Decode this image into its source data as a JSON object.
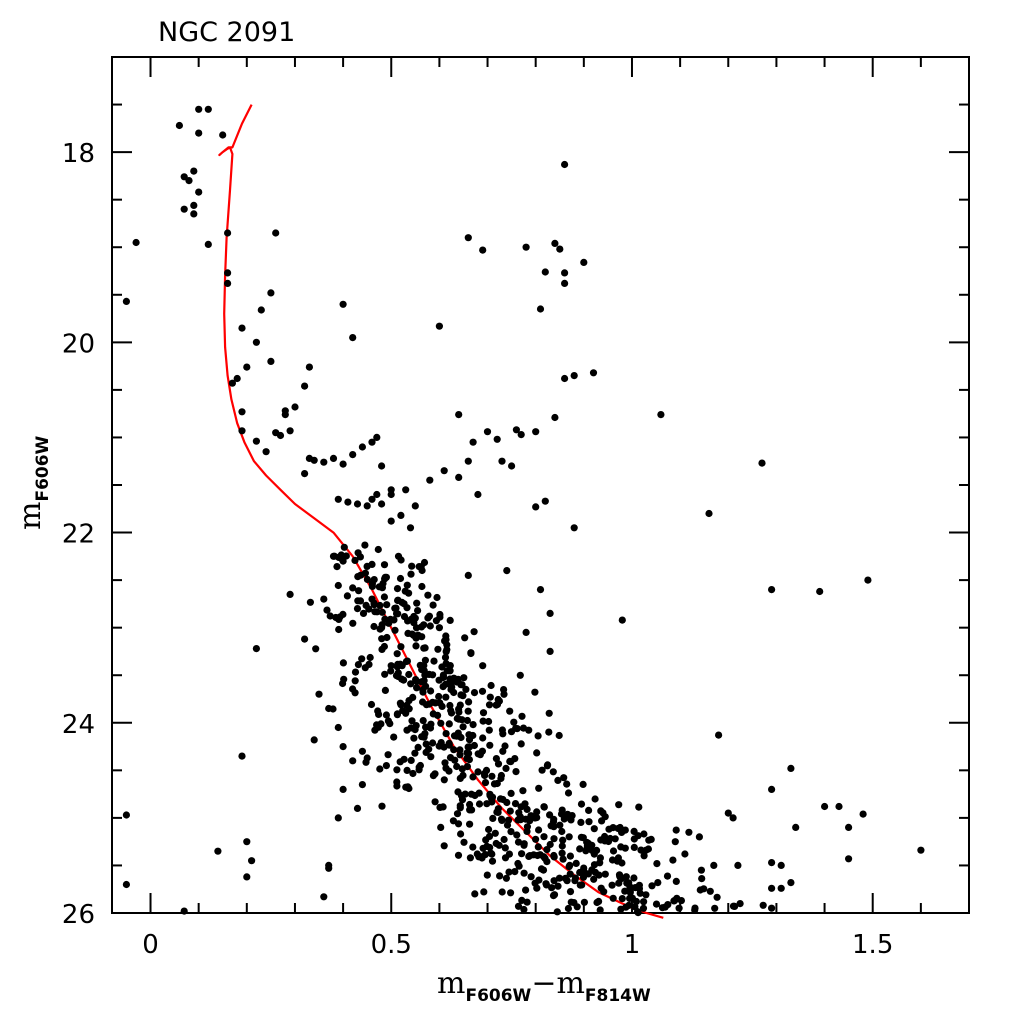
{
  "chart_data": {
    "type": "scatter",
    "title": "NGC 2091",
    "xlabel": {
      "main": "m",
      "sub1": "F606W",
      "minus": "−",
      "main2": "m",
      "sub2": "F814W"
    },
    "ylabel": {
      "main": "m",
      "sub": "F606W"
    },
    "xlim": [
      -0.08,
      1.7
    ],
    "ylim": [
      26,
      17.0
    ],
    "y_inverted": true,
    "grid": false,
    "x_ticks": [
      0,
      0.5,
      1,
      1.5
    ],
    "x_tick_labels": [
      "0",
      "0.5",
      "1",
      "1.5"
    ],
    "y_ticks": [
      18,
      20,
      22,
      24,
      26
    ],
    "y_tick_labels": [
      "18",
      "20",
      "22",
      "24",
      "26"
    ],
    "colors": {
      "points": "#000000",
      "isochrone": "#ff0000"
    },
    "isochrone": {
      "x": [
        0.21,
        0.19,
        0.17,
        0.168,
        0.162,
        0.15,
        0.143,
        0.15,
        0.158,
        0.165,
        0.17,
        0.165,
        0.158,
        0.155,
        0.153,
        0.155,
        0.16,
        0.168,
        0.18,
        0.195,
        0.215,
        0.24,
        0.27,
        0.3,
        0.34,
        0.38,
        0.42,
        0.46,
        0.5,
        0.54,
        0.58,
        0.63,
        0.68,
        0.73,
        0.78,
        0.83,
        0.88,
        0.93,
        0.98,
        1.03,
        1.065
      ],
      "y": [
        17.5,
        17.7,
        17.95,
        17.95,
        17.95,
        18.0,
        18.03,
        18.0,
        17.97,
        17.95,
        18.02,
        18.4,
        18.9,
        19.3,
        19.7,
        20.05,
        20.35,
        20.6,
        20.85,
        21.05,
        21.25,
        21.4,
        21.55,
        21.7,
        21.85,
        22.0,
        22.25,
        22.6,
        23.0,
        23.4,
        23.8,
        24.25,
        24.6,
        24.9,
        25.15,
        25.4,
        25.6,
        25.78,
        25.9,
        26.0,
        26.05
      ]
    },
    "points_x": [
      0.1,
      0.12,
      0.06,
      0.1,
      0.15,
      0.07,
      0.09,
      0.08,
      0.1,
      0.09,
      0.07,
      0.09,
      0.12,
      0.16,
      -0.03,
      0.16,
      0.16,
      -0.05,
      0.26,
      0.25,
      0.23,
      0.19,
      0.2,
      0.18,
      0.17,
      0.22,
      0.25,
      0.28,
      0.32,
      0.3,
      0.28,
      0.29,
      0.19,
      0.19,
      0.26,
      0.27,
      0.24,
      0.22,
      0.4,
      0.42,
      0.33,
      0.66,
      0.6,
      0.69,
      0.78,
      0.82,
      0.84,
      0.85,
      0.86,
      0.86,
      0.81,
      0.86,
      0.9,
      0.8,
      0.86,
      0.76,
      0.77,
      0.84,
      0.88,
      0.92,
      0.72,
      0.64,
      0.7,
      1.06,
      0.82,
      0.8,
      0.88,
      1.16,
      1.27,
      1.29,
      1.39,
      1.49,
      0.98,
      1.18,
      1.33,
      1.29,
      1.4,
      1.43,
      1.48,
      1.45,
      1.34,
      1.45,
      1.6,
      1.33,
      1.31,
      1.29,
      1.29,
      1.29,
      1.31,
      1.2,
      1.21,
      1.22,
      1.09,
      1.11,
      1.14,
      1.17,
      0.22,
      0.29,
      0.32,
      0.35,
      0.34,
      0.4,
      0.44,
      0.45,
      0.49,
      0.4,
      0.43,
      0.39,
      0.37,
      0.37,
      0.36,
      0.19,
      0.2,
      0.2,
      0.21,
      0.14,
      -0.05,
      -0.05,
      0.07,
      0.46,
      0.5,
      0.48,
      0.32,
      0.33,
      0.34,
      0.36,
      0.38,
      0.4,
      0.42,
      0.44,
      0.46,
      0.47,
      0.48,
      0.5,
      0.53,
      0.55,
      0.58,
      0.61,
      0.64,
      0.66,
      0.67,
      0.68,
      0.73,
      0.75,
      0.39,
      0.41,
      0.43,
      0.45,
      0.5,
      0.52,
      0.54,
      0.47,
      0.38,
      0.4,
      0.36,
      0.43,
      0.46,
      0.48,
      0.5,
      0.52,
      0.53,
      0.55,
      0.57,
      0.6,
      0.66,
      0.69,
      0.74,
      0.78,
      0.81,
      0.83,
      0.83,
      0.37,
      0.39,
      0.42,
      0.44
    ],
    "points_y": [
      17.55,
      17.55,
      17.72,
      17.8,
      17.82,
      18.26,
      18.2,
      18.3,
      18.42,
      18.56,
      18.6,
      18.65,
      18.97,
      18.85,
      18.95,
      19.27,
      19.38,
      19.57,
      18.85,
      19.48,
      19.66,
      19.85,
      20.26,
      20.38,
      20.43,
      20.0,
      20.2,
      20.72,
      20.46,
      20.68,
      20.76,
      20.93,
      20.73,
      20.93,
      20.95,
      20.98,
      21.15,
      21.04,
      19.6,
      19.95,
      20.26,
      18.9,
      19.83,
      19.03,
      19.0,
      19.26,
      18.96,
      19.02,
      19.27,
      19.38,
      19.65,
      18.13,
      19.16,
      20.94,
      20.38,
      20.92,
      20.97,
      20.79,
      20.35,
      20.32,
      21.02,
      20.76,
      20.94,
      20.76,
      21.67,
      21.73,
      21.95,
      21.8,
      21.27,
      22.6,
      22.62,
      22.5,
      22.92,
      24.13,
      24.48,
      24.7,
      24.88,
      24.88,
      24.96,
      25.1,
      25.1,
      25.43,
      25.34,
      25.68,
      25.74,
      25.74,
      25.47,
      25.95,
      25.5,
      24.95,
      25.0,
      25.5,
      25.25,
      25.38,
      25.2,
      25.5,
      23.22,
      22.65,
      23.12,
      23.7,
      24.18,
      24.25,
      24.3,
      24.37,
      24.45,
      24.7,
      24.9,
      25.0,
      25.5,
      25.53,
      25.83,
      24.35,
      25.25,
      25.62,
      25.45,
      25.35,
      24.97,
      25.7,
      25.98,
      21.65,
      21.6,
      21.7,
      21.38,
      21.22,
      21.24,
      21.26,
      21.22,
      21.28,
      21.18,
      21.1,
      21.05,
      21.0,
      21.3,
      21.55,
      21.55,
      21.72,
      21.45,
      21.35,
      21.42,
      21.25,
      21.05,
      21.6,
      21.25,
      21.3,
      21.65,
      21.68,
      21.7,
      21.72,
      21.88,
      21.82,
      21.95,
      21.6,
      22.25,
      22.3,
      22.7,
      22.8,
      22.7,
      23.0,
      23.4,
      23.2,
      23.9,
      22.9,
      23.5,
      23.0,
      22.45,
      23.4,
      22.4,
      23.05,
      22.6,
      23.25,
      22.85,
      23.85,
      24.05,
      24.4,
      24.65
    ]
  }
}
